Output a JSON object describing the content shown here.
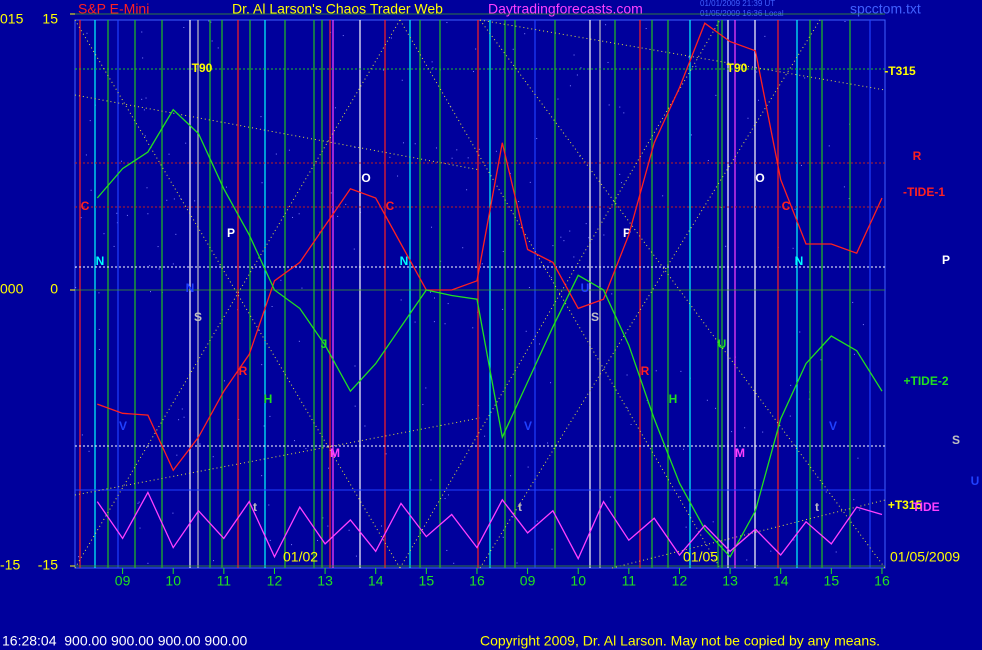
{
  "header": {
    "symbol": "S&P E-Mini",
    "title": "Dr. Al Larson's Chaos Trader Web",
    "site": "Daytradingforecasts.com",
    "stamp1": "01/01/2009 21:39 UT",
    "stamp2": "01/05/2009 16:36 Local",
    "file": "spcctom.txt"
  },
  "footer": {
    "status": "16:28:04  900.00 900.00 900.00 900.00",
    "copyright": "Copyright 2009, Dr. Al Larson. May not be copied by any means."
  },
  "chart_data": {
    "type": "line",
    "x": [
      0.5,
      1,
      1.5,
      2,
      2.5,
      3,
      3.5,
      4,
      4.5,
      5,
      5.5,
      6,
      6.5,
      7,
      7.5,
      8,
      8.5,
      9,
      9.5,
      10,
      10.5,
      11,
      11.5,
      12,
      12.5,
      13,
      13.5,
      14,
      14.5,
      15,
      15.5,
      16
    ],
    "series": [
      {
        "name": "-TIDE-1",
        "color": "#ff2020",
        "values": [
          -6.2,
          -6.7,
          -6.8,
          -9.8,
          -8,
          -5.5,
          -3.5,
          0.5,
          1.5,
          3.5,
          5.5,
          5,
          2.5,
          0,
          0,
          0.5,
          8,
          2.2,
          1.5,
          -1,
          -0.5,
          3,
          8,
          11,
          14.5,
          13.5,
          13,
          6,
          2.5,
          2.5,
          2,
          5
        ]
      },
      {
        "name": "+TIDE-2",
        "color": "#20e020",
        "values": [
          5,
          6.6,
          7.5,
          9.8,
          8.5,
          5.5,
          3,
          0,
          -1,
          -3,
          -5.5,
          -4,
          -2,
          0,
          -0.3,
          -0.5,
          -8,
          -5,
          -2,
          0.8,
          0,
          -3,
          -7,
          -10.5,
          -13,
          -14.5,
          -12,
          -7,
          -4,
          -2.5,
          -3.3,
          -5.5
        ]
      },
      {
        "name": "TIDE",
        "color": "#ff40ff",
        "values": [
          -11.5,
          -13.5,
          -11,
          -14,
          -12,
          -13.5,
          -11.5,
          -14.5,
          -11.8,
          -13.8,
          -12.5,
          -14.2,
          -11.6,
          -13.4,
          -12.2,
          -14,
          -11.4,
          -13.2,
          -12,
          -14.6,
          -11.5,
          -13.6,
          -12.4,
          -14.4,
          -12.8,
          -14.2,
          -13,
          -14.4,
          -12.6,
          -13.8,
          -11.8,
          -12.2
        ]
      }
    ],
    "xlim": [
      0.06,
      16.06
    ],
    "xticks": [
      {
        "value": 1,
        "label": "09"
      },
      {
        "value": 2,
        "label": "10"
      },
      {
        "value": 3,
        "label": "11"
      },
      {
        "value": 4,
        "label": "12"
      },
      {
        "value": 5,
        "label": "13"
      },
      {
        "value": 6,
        "label": "14"
      },
      {
        "value": 7,
        "label": "15"
      },
      {
        "value": 8,
        "label": "16"
      },
      {
        "value": 9,
        "label": "09"
      },
      {
        "value": 10,
        "label": "10"
      },
      {
        "value": 11,
        "label": "11"
      },
      {
        "value": 12,
        "label": "12"
      },
      {
        "value": 13,
        "label": "13"
      },
      {
        "value": 14,
        "label": "14"
      },
      {
        "value": 15,
        "label": "15"
      },
      {
        "value": 16,
        "label": "16"
      }
    ],
    "ylim": [
      -15,
      15
    ],
    "yticks": [
      15,
      0,
      -15
    ],
    "y2lim": [
      -15,
      15
    ],
    "y2ticks": [
      {
        "value": 15,
        "label": "015"
      },
      {
        "value": 0,
        "label": "000"
      },
      {
        "value": -15,
        "label": "-15"
      }
    ],
    "dates": [
      "01/02",
      "01/05",
      "01/05/2009"
    ],
    "annotations": [
      {
        "text": "C",
        "color": "#ff2020"
      },
      {
        "text": "N",
        "color": "#00ffff"
      },
      {
        "text": "T90",
        "color": "#ffff00"
      },
      {
        "text": "P",
        "color": "#ffffff"
      },
      {
        "text": "N",
        "color": "#2040ff"
      },
      {
        "text": "S",
        "color": "#c0c0c0"
      },
      {
        "text": "R",
        "color": "#ff2020"
      },
      {
        "text": "H",
        "color": "#20e020"
      },
      {
        "text": "J",
        "color": "#20e020"
      },
      {
        "text": "M",
        "color": "#ff40ff"
      },
      {
        "text": "O",
        "color": "#ffffff"
      },
      {
        "text": "C",
        "color": "#ff2020"
      },
      {
        "text": "N",
        "color": "#00ffff"
      },
      {
        "text": "V",
        "color": "#2040ff"
      },
      {
        "text": "t",
        "color": "#c0c0c0"
      },
      {
        "text": "T90",
        "color": "#ffff00"
      },
      {
        "text": "P",
        "color": "#ffffff"
      },
      {
        "text": "O",
        "color": "#ffffff"
      },
      {
        "text": "C",
        "color": "#ff2020"
      },
      {
        "text": "N",
        "color": "#00ffff"
      },
      {
        "text": "U",
        "color": "#2040ff"
      },
      {
        "text": "S",
        "color": "#c0c0c0"
      },
      {
        "text": "R",
        "color": "#ff2020"
      },
      {
        "text": "H",
        "color": "#20e020"
      },
      {
        "text": "M",
        "color": "#ff40ff"
      },
      {
        "text": "V",
        "color": "#2040ff"
      },
      {
        "text": "V",
        "color": "#2040ff"
      },
      {
        "text": "t",
        "color": "#c0c0c0"
      },
      {
        "text": "t",
        "color": "#c0c0c0"
      },
      {
        "text": "U",
        "color": "#20e020"
      },
      {
        "text": "-T315",
        "color": "#ffff00"
      },
      {
        "text": "R",
        "color": "#ff2020"
      },
      {
        "text": "-TIDE-1",
        "color": "#ff2020"
      },
      {
        "text": "P",
        "color": "#ffffff"
      },
      {
        "text": "+TIDE-2",
        "color": "#20e020"
      },
      {
        "text": "S",
        "color": "#c0c0c0"
      },
      {
        "text": "U",
        "color": "#2040ff"
      },
      {
        "text": "+T315",
        "color": "#ffff00"
      },
      {
        "text": "TIDE",
        "color": "#ff40ff"
      }
    ]
  }
}
